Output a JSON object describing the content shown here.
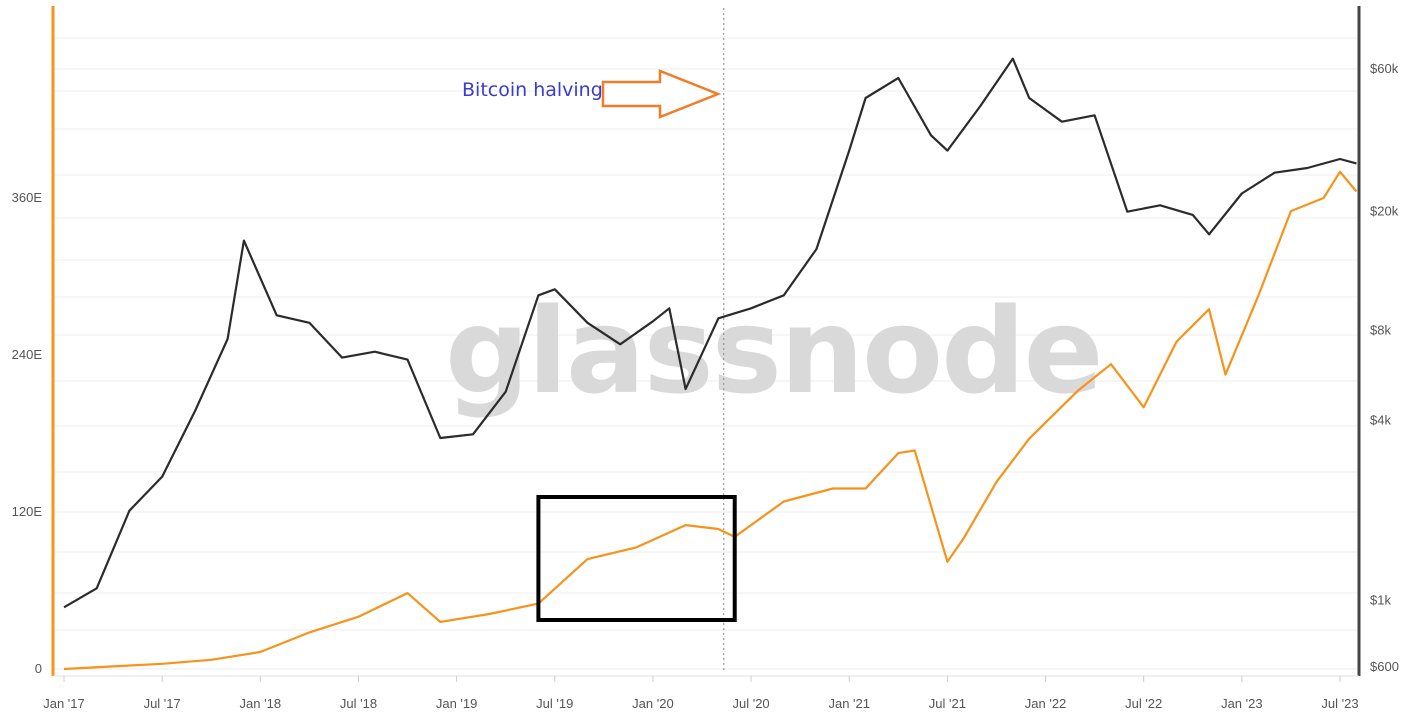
{
  "chart_data": {
    "type": "line",
    "watermark": "glassnode",
    "annotation": "Bitcoin halving",
    "x_ticks": [
      "Jan '17",
      "Jul '17",
      "Jan '18",
      "Jul '18",
      "Jan '19",
      "Jul '19",
      "Jan '20",
      "Jul '20",
      "Jan '21",
      "Jul '21",
      "Jan '22",
      "Jul '22",
      "Jan '23",
      "Jul '23"
    ],
    "y_left": {
      "ticks": [
        "0",
        "120E",
        "240E",
        "360E"
      ],
      "values": [
        0,
        120,
        240,
        360
      ],
      "color": "#f7931a"
    },
    "y_right": {
      "ticks": [
        "$600",
        "$1k",
        "$4k",
        "$8k",
        "$20k",
        "$60k"
      ],
      "values": [
        600,
        1000,
        4000,
        8000,
        20000,
        60000
      ],
      "scale": "log",
      "color": "#333333"
    },
    "halving_date": "2020-05-11",
    "highlight_box": {
      "from": "2019-06",
      "to": "2020-06"
    },
    "series": [
      {
        "axis": "left",
        "color": "#f7931a",
        "x": [
          "2017-01",
          "2017-04",
          "2017-07",
          "2017-10",
          "2018-01",
          "2018-04",
          "2018-07",
          "2018-10",
          "2018-12",
          "2019-03",
          "2019-06",
          "2019-09",
          "2019-12",
          "2020-03",
          "2020-05",
          "2020-06",
          "2020-09",
          "2020-12",
          "2021-02",
          "2021-04",
          "2021-05",
          "2021-07",
          "2021-08",
          "2021-10",
          "2021-12",
          "2022-03",
          "2022-05",
          "2022-07",
          "2022-09",
          "2022-11",
          "2022-12",
          "2023-02",
          "2023-04",
          "2023-06",
          "2023-07",
          "2023-08"
        ],
        "values": [
          0,
          2,
          4,
          7,
          13,
          28,
          40,
          58,
          36,
          42,
          50,
          84,
          93,
          110,
          107,
          101,
          128,
          138,
          138,
          165,
          167,
          82,
          100,
          143,
          176,
          213,
          233,
          200,
          250,
          275,
          225,
          285,
          350,
          360,
          380,
          365
        ]
      },
      {
        "axis": "right",
        "color": "#333333",
        "x": [
          "2017-01",
          "2017-03",
          "2017-05",
          "2017-07",
          "2017-09",
          "2017-11",
          "2017-12",
          "2018-02",
          "2018-04",
          "2018-06",
          "2018-08",
          "2018-10",
          "2018-12",
          "2019-02",
          "2019-04",
          "2019-06",
          "2019-07",
          "2019-09",
          "2019-11",
          "2020-01",
          "2020-02",
          "2020-03",
          "2020-05",
          "2020-07",
          "2020-09",
          "2020-11",
          "2021-01",
          "2021-02",
          "2021-04",
          "2021-06",
          "2021-07",
          "2021-09",
          "2021-11",
          "2021-12",
          "2022-02",
          "2022-04",
          "2022-06",
          "2022-08",
          "2022-10",
          "2022-11",
          "2023-01",
          "2023-03",
          "2023-05",
          "2023-07",
          "2023-08"
        ],
        "values": [
          950,
          1100,
          2000,
          2600,
          4300,
          7500,
          16000,
          9000,
          8500,
          6500,
          6800,
          6400,
          3500,
          3600,
          5000,
          10500,
          11000,
          8500,
          7200,
          8600,
          9500,
          5100,
          8800,
          9500,
          10500,
          15000,
          32000,
          48000,
          56000,
          36000,
          32000,
          45000,
          65000,
          48000,
          40000,
          42000,
          20000,
          21000,
          19500,
          16800,
          23000,
          27000,
          28000,
          30000,
          29000
        ]
      }
    ]
  }
}
